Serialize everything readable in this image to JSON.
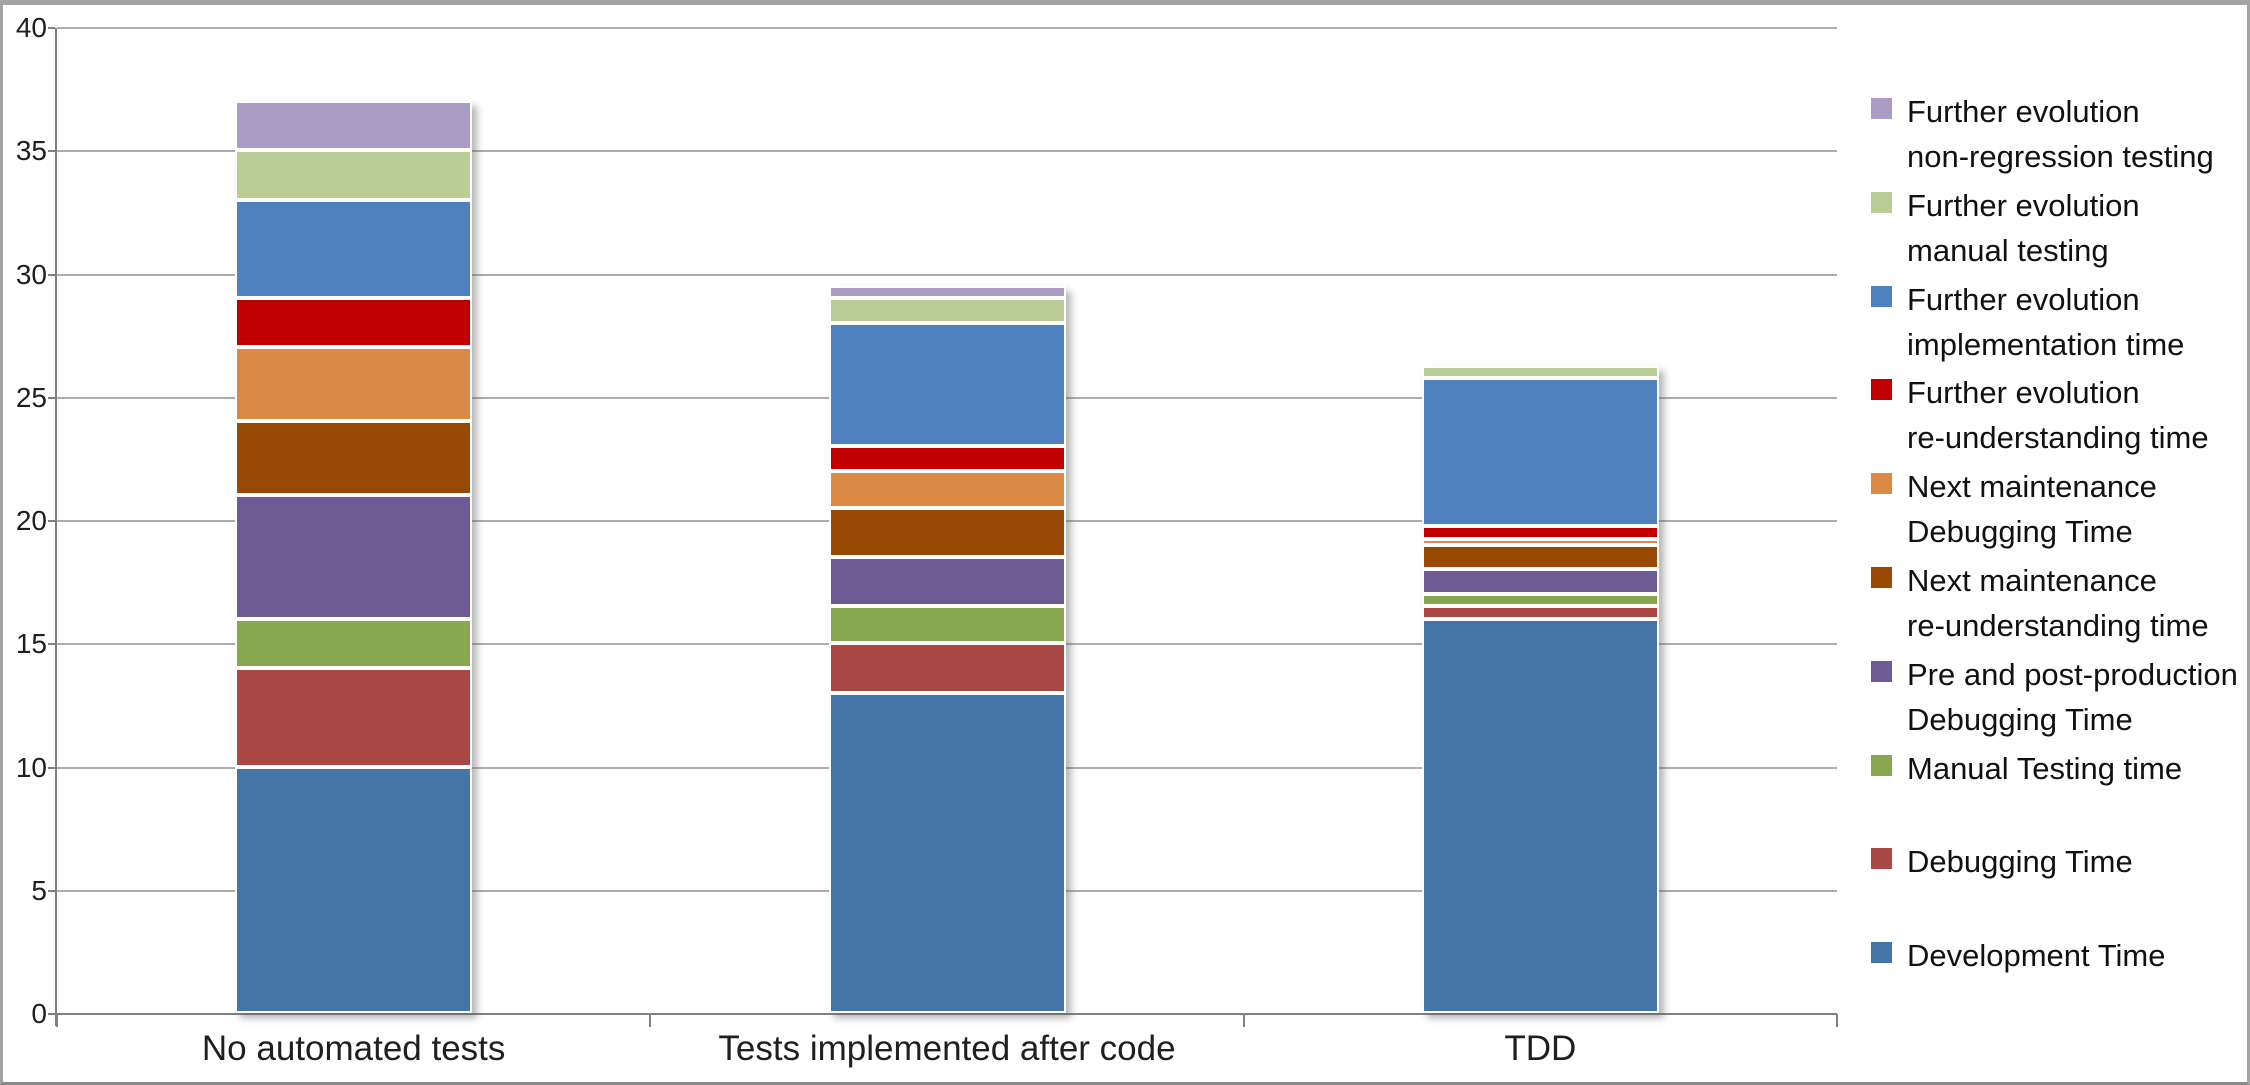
{
  "chart_data": {
    "type": "bar",
    "stacked": true,
    "title": "",
    "xlabel": "",
    "ylabel": "",
    "categories": [
      "No automated tests",
      "Tests implemented after code",
      "TDD"
    ],
    "series": [
      {
        "name": "Development Time",
        "color": "#4574A9",
        "values": [
          10,
          13,
          16
        ],
        "legend_lines": [
          "Development Time"
        ]
      },
      {
        "name": "Debugging Time",
        "color": "#A94845",
        "values": [
          4,
          2,
          0.5
        ],
        "legend_lines": [
          "Debugging Time"
        ]
      },
      {
        "name": "Manual Testing time",
        "color": "#89A750",
        "values": [
          2,
          1.5,
          0.5
        ],
        "legend_lines": [
          "Manual Testing time"
        ]
      },
      {
        "name": "Pre and post-production Debugging Time",
        "color": "#6F5B94",
        "values": [
          5,
          2,
          1
        ],
        "legend_lines": [
          "Pre and post-production",
          "Debugging Time"
        ]
      },
      {
        "name": "Next maintenance re-understanding time",
        "color": "#984A04",
        "values": [
          3,
          2,
          1
        ],
        "legend_lines": [
          "Next maintenance",
          "re-understanding time"
        ]
      },
      {
        "name": "Next maintenance Debugging Time",
        "color": "#DB8A46",
        "values": [
          3,
          1.5,
          0.25
        ],
        "legend_lines": [
          "Next maintenance",
          "Debugging Time"
        ]
      },
      {
        "name": "Further evolution re-understanding time",
        "color": "#C00000",
        "values": [
          2,
          1,
          0.5
        ],
        "legend_lines": [
          "Further evolution",
          "re-understanding time"
        ]
      },
      {
        "name": "Further evolution implementation time",
        "color": "#4E81BD",
        "values": [
          4,
          5,
          6
        ],
        "legend_lines": [
          "Further evolution",
          "implementation time"
        ]
      },
      {
        "name": "Further evolution manual testing",
        "color": "#BACD97",
        "values": [
          2,
          1,
          0.5
        ],
        "legend_lines": [
          "Further evolution",
          "manual testing"
        ]
      },
      {
        "name": "Further evolution non-regression testing",
        "color": "#AA9CC3",
        "values": [
          2,
          0.5,
          0
        ],
        "legend_lines": [
          "Further evolution",
          "non-regression testing"
        ]
      }
    ],
    "totals": [
      37,
      29.5,
      26.25
    ],
    "ylim": [
      0,
      40
    ],
    "yticks": [
      0,
      5,
      10,
      15,
      20,
      25,
      30,
      35,
      40
    ],
    "ytick_labels": [
      "0",
      "5",
      "10",
      "15",
      "20",
      "25",
      "30",
      "35",
      "40"
    ],
    "grid": true,
    "legend_position": "right",
    "legend_order": "reverse-of-stack"
  },
  "colors": {
    "gridline": "#ADADAD",
    "axis": "#808080",
    "page_border": "#A4A4A4",
    "text": "#1f1f1f",
    "background": "#FFFFFF"
  }
}
